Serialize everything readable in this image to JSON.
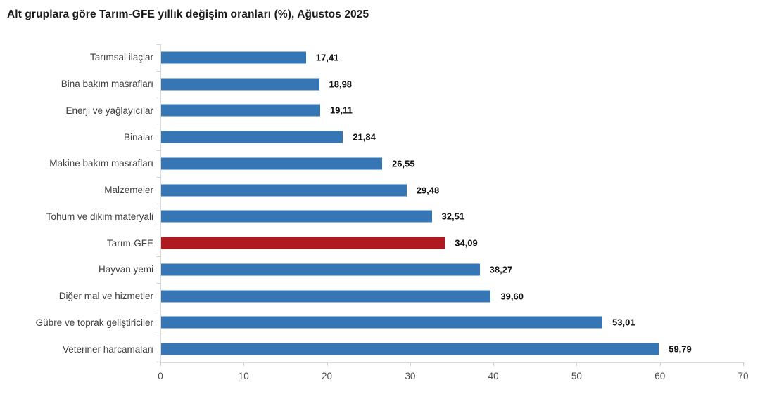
{
  "title": "Alt gruplara göre Tarım-GFE yıllık değişim oranları (%), Ağustos 2025",
  "chart_data": {
    "type": "bar",
    "orientation": "horizontal",
    "title": "Alt gruplara göre Tarım-GFE yıllık değişim oranları (%), Ağustos 2025",
    "categories": [
      "Tarımsal ilaçlar",
      "Bina bakım masrafları",
      "Enerji  ve yağlayıcılar",
      "Binalar",
      "Makine bakım masrafları",
      "Malzemeler",
      "Tohum ve dikim materyali",
      "Tarım-GFE",
      "Hayvan yemi",
      "Diğer mal ve hizmetler",
      "Gübre ve toprak geliştiriciler",
      "Veteriner harcamaları"
    ],
    "values": [
      17.41,
      18.98,
      19.11,
      21.84,
      26.55,
      29.48,
      32.51,
      34.09,
      38.27,
      39.6,
      53.01,
      59.79
    ],
    "value_labels": [
      "17,41",
      "18,98",
      "19,11",
      "21,84",
      "26,55",
      "29,48",
      "32,51",
      "34,09",
      "38,27",
      "39,60",
      "53,01",
      "59,79"
    ],
    "highlight_index": 7,
    "highlight_category": "Tarım-GFE",
    "bar_color": "#3676b4",
    "highlight_color": "#ae1a1f",
    "axis_color": "#d9d9d9",
    "xlabel": "",
    "ylabel": "",
    "xlim": [
      0,
      70
    ],
    "x_ticks": [
      "0",
      "10",
      "20",
      "30",
      "40",
      "50",
      "60",
      "70"
    ],
    "grid": false,
    "legend": false
  }
}
